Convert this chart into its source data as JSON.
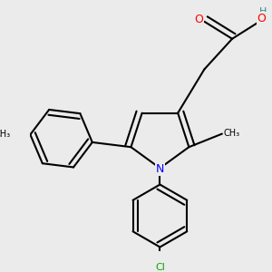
{
  "bg_color": "#ebebeb",
  "atom_colors": {
    "C": "#000000",
    "H": "#2e8b8b",
    "O": "#ff0000",
    "N": "#0000ff",
    "Cl": "#00aa00"
  },
  "bond_color": "#000000",
  "bond_width": 1.5
}
